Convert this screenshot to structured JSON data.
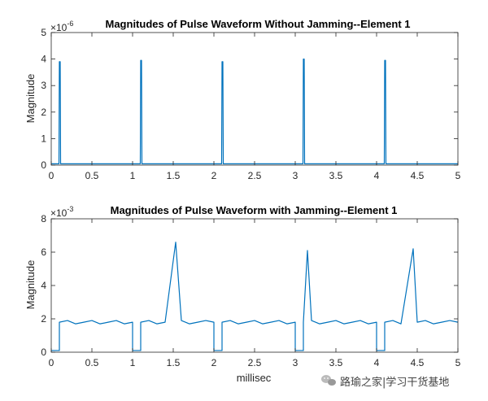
{
  "chart_data": [
    {
      "type": "line",
      "title": "Magnitudes of Pulse Waveform Without Jamming--Element 1",
      "xlabel": "",
      "ylabel": "Magnitude",
      "y_exponent_base": "×10",
      "y_exponent_power": "-6",
      "xlim": [
        0,
        5
      ],
      "ylim": [
        0,
        5
      ],
      "x_ticks": [
        "0",
        "0.5",
        "1",
        "1.5",
        "2",
        "2.5",
        "3",
        "3.5",
        "4",
        "4.5",
        "5"
      ],
      "y_ticks": [
        "0",
        "1",
        "2",
        "3",
        "4",
        "5"
      ],
      "color": "#0072BD",
      "series": [
        {
          "x": [
            0.0,
            0.095,
            0.1,
            0.11,
            0.115,
            0.3,
            0.6,
            0.9,
            1.095,
            1.1,
            1.11,
            1.115,
            1.5,
            1.8,
            2.095,
            2.1,
            2.11,
            2.115,
            2.5,
            2.8,
            3.095,
            3.1,
            3.11,
            3.115,
            3.5,
            3.8,
            4.095,
            4.1,
            4.11,
            4.115,
            4.5,
            5.0
          ],
          "y": [
            0.05,
            0.05,
            3.9,
            3.9,
            0.05,
            0.05,
            0.05,
            0.05,
            0.05,
            3.95,
            3.95,
            0.05,
            0.05,
            0.05,
            0.05,
            3.9,
            3.9,
            0.05,
            0.05,
            0.05,
            0.05,
            4.0,
            4.0,
            0.05,
            0.05,
            0.05,
            0.05,
            3.95,
            3.95,
            0.05,
            0.05,
            0.05
          ]
        }
      ]
    },
    {
      "type": "line",
      "title": "Magnitudes of Pulse Waveform with Jamming--Element 1",
      "xlabel": "millisec",
      "ylabel": "Magnitude",
      "y_exponent_base": "×10",
      "y_exponent_power": "-3",
      "xlim": [
        0,
        5
      ],
      "ylim": [
        0,
        8
      ],
      "x_ticks": [
        "0",
        "0.5",
        "1",
        "1.5",
        "2",
        "2.5",
        "3",
        "3.5",
        "4",
        "4.5",
        "5"
      ],
      "y_ticks": [
        "0",
        "2",
        "4",
        "6",
        "8"
      ],
      "color": "#0072BD",
      "series": [
        {
          "x": [
            0.0,
            0.1,
            0.1,
            0.2,
            0.3,
            0.4,
            0.5,
            0.6,
            0.7,
            0.8,
            0.9,
            1.0,
            1.0,
            1.1,
            1.1,
            1.2,
            1.3,
            1.4,
            1.53,
            1.6,
            1.7,
            1.8,
            1.9,
            2.0,
            2.0,
            2.1,
            2.1,
            2.2,
            2.3,
            2.4,
            2.5,
            2.6,
            2.7,
            2.8,
            2.9,
            3.0,
            3.0,
            3.1,
            3.1,
            3.15,
            3.2,
            3.3,
            3.4,
            3.5,
            3.6,
            3.7,
            3.8,
            3.9,
            4.0,
            4.0,
            4.1,
            4.1,
            4.2,
            4.3,
            4.45,
            4.5,
            4.6,
            4.7,
            4.8,
            4.9,
            5.0
          ],
          "y": [
            0.1,
            0.1,
            1.8,
            1.9,
            1.7,
            1.8,
            1.9,
            1.7,
            1.8,
            1.9,
            1.7,
            1.8,
            0.1,
            0.1,
            1.8,
            1.9,
            1.7,
            1.8,
            6.6,
            1.9,
            1.7,
            1.8,
            1.9,
            1.8,
            0.1,
            0.1,
            1.8,
            1.9,
            1.7,
            1.8,
            1.9,
            1.7,
            1.8,
            1.9,
            1.7,
            1.8,
            0.1,
            0.1,
            1.8,
            6.1,
            1.9,
            1.7,
            1.8,
            1.9,
            1.7,
            1.8,
            1.9,
            1.7,
            1.8,
            0.1,
            0.1,
            1.8,
            1.9,
            1.7,
            6.2,
            1.8,
            1.9,
            1.7,
            1.8,
            1.9,
            1.8
          ]
        }
      ]
    }
  ],
  "watermark": {
    "text": "路瑜之家|学习干货基地",
    "icon": "wechat-icon"
  }
}
